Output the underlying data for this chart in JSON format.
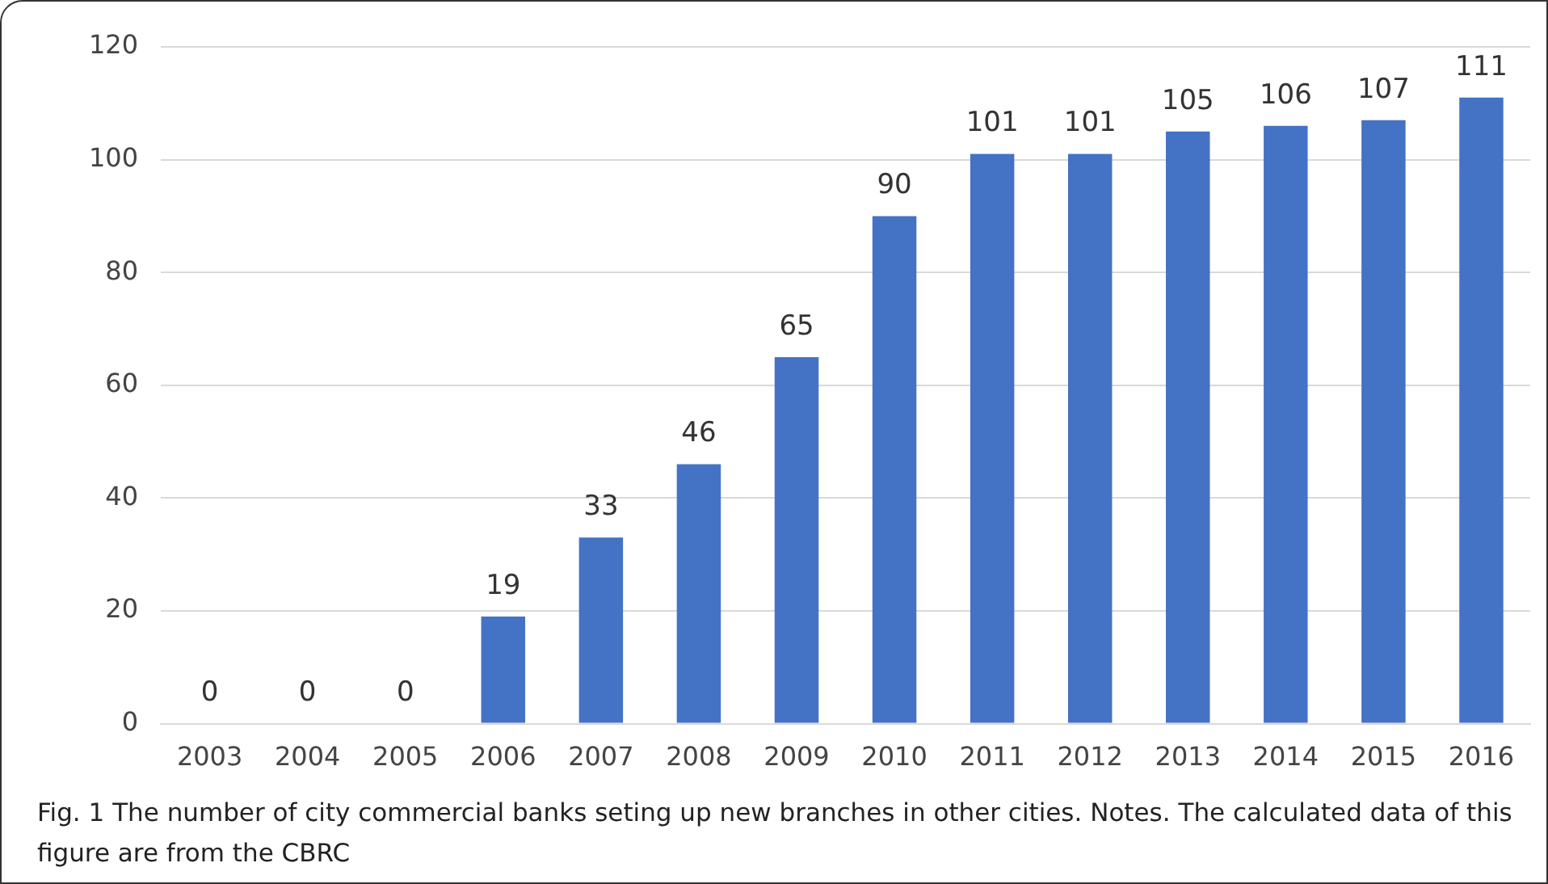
{
  "chart_data": {
    "type": "bar",
    "categories": [
      "2003",
      "2004",
      "2005",
      "2006",
      "2007",
      "2008",
      "2009",
      "2010",
      "2011",
      "2012",
      "2013",
      "2014",
      "2015",
      "2016"
    ],
    "values": [
      0,
      0,
      0,
      19,
      33,
      46,
      65,
      90,
      101,
      101,
      105,
      106,
      107,
      111
    ],
    "color": "#4472c4",
    "ylim": [
      0,
      120
    ],
    "yticks": [
      0,
      20,
      40,
      60,
      80,
      100,
      120
    ],
    "grid": "y",
    "data_labels": true,
    "annotations": [
      "Fig. 1 The number of city commercial banks seting up new branches in other cities. Notes. The calculated data of this figure are from the CBRC"
    ]
  }
}
